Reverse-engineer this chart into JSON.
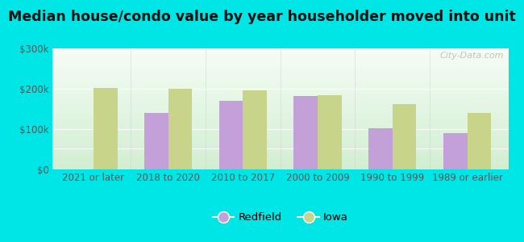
{
  "title": "Median house/condo value by year householder moved into unit",
  "categories": [
    "2021 or later",
    "2018 to 2020",
    "2010 to 2017",
    "2000 to 2009",
    "1990 to 1999",
    "1989 or earlier"
  ],
  "redfield_values": [
    null,
    140000,
    170000,
    182000,
    103000,
    90000
  ],
  "iowa_values": [
    203000,
    200000,
    196000,
    185000,
    163000,
    140000
  ],
  "redfield_color": "#c4a0d8",
  "iowa_color": "#c8d48a",
  "background_outer": "#00e5e5",
  "ylim": [
    0,
    300000
  ],
  "yticks": [
    0,
    100000,
    200000,
    300000
  ],
  "ytick_labels": [
    "$0",
    "$100k",
    "$200k",
    "$300k"
  ],
  "legend_redfield": "Redfield",
  "legend_iowa": "Iowa",
  "watermark": "City-Data.com",
  "bar_width": 0.32,
  "title_fontsize": 12.5,
  "tick_fontsize": 8.5,
  "legend_fontsize": 9.5
}
